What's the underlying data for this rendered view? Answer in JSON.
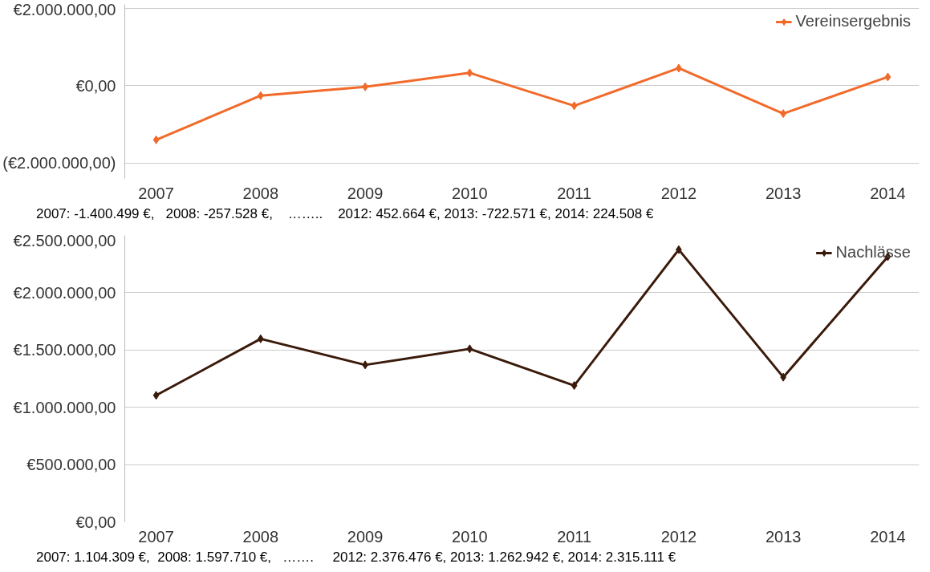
{
  "chart_data": [
    {
      "type": "line",
      "categories": [
        "2007",
        "2008",
        "2009",
        "2010",
        "2011",
        "2012",
        "2013",
        "2014"
      ],
      "series": [
        {
          "name": "Vereinsergebnis",
          "color": "#f26a2a",
          "values": [
            -1400499,
            -257528,
            -30000,
            330000,
            -520000,
            452664,
            -722571,
            224508
          ]
        }
      ],
      "ylim": [
        -2400000,
        2100000
      ],
      "yticks": [
        {
          "value": 2000000,
          "label": "€2.000.000,00"
        },
        {
          "value": 0,
          "label": "€0,00"
        },
        {
          "value": -2000000,
          "label": "(€2.000.000,00)"
        }
      ],
      "grid": "y",
      "legend": "top right",
      "marker": "diamond",
      "line_style": "solid",
      "annotations": [
        "2007: -1.400.499 €,   2008: -257.528 €,    ……..    2012: 452.664 €, 2013: -722.571 €, 2014: 224.508 €"
      ]
    },
    {
      "type": "line",
      "categories": [
        "2007",
        "2008",
        "2009",
        "2010",
        "2011",
        "2012",
        "2013",
        "2014"
      ],
      "series": [
        {
          "name": "Nachlässe",
          "color": "#3a1a0a",
          "values": [
            1104309,
            1597710,
            1370000,
            1510000,
            1190000,
            2376476,
            1262942,
            2315111
          ]
        }
      ],
      "ylim": [
        0,
        2500000
      ],
      "yticks": [
        {
          "value": 0,
          "label": "€0,00"
        },
        {
          "value": 500000,
          "label": "€500.000,00"
        },
        {
          "value": 1000000,
          "label": "€1.000.000,00"
        },
        {
          "value": 1500000,
          "label": "€1.500.000,00"
        },
        {
          "value": 2000000,
          "label": "€2.000.000,00"
        },
        {
          "value": 2500000,
          "label": "€2.500.000,00"
        }
      ],
      "grid": "y",
      "legend": "top right",
      "marker": "diamond",
      "line_style": "solid",
      "annotations": [
        "2007: 1.104.309 €,  2008: 1.597.710 €,   …….     2012: 2.376.476 €, 2013: 1.262.942 €, 2014: 2.315.111 €"
      ]
    }
  ]
}
